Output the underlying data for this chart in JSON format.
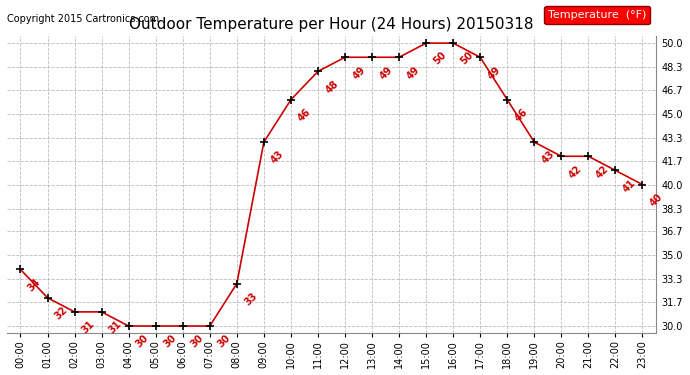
{
  "title": "Outdoor Temperature per Hour (24 Hours) 20150318",
  "copyright": "Copyright 2015 Cartronics.com",
  "legend_label": "Temperature  (°F)",
  "hours": [
    "00:00",
    "01:00",
    "02:00",
    "03:00",
    "04:00",
    "05:00",
    "06:00",
    "07:00",
    "08:00",
    "09:00",
    "10:00",
    "11:00",
    "12:00",
    "13:00",
    "14:00",
    "15:00",
    "16:00",
    "17:00",
    "18:00",
    "19:00",
    "20:00",
    "21:00",
    "22:00",
    "23:00"
  ],
  "temperatures": [
    34,
    32,
    31,
    31,
    30,
    30,
    30,
    30,
    33,
    43,
    46,
    48,
    49,
    49,
    49,
    50,
    50,
    49,
    46,
    43,
    42,
    42,
    41,
    40
  ],
  "ylim": [
    29.5,
    50.5
  ],
  "yticks": [
    30.0,
    31.7,
    33.3,
    35.0,
    36.7,
    38.3,
    40.0,
    41.7,
    43.3,
    45.0,
    46.7,
    48.3,
    50.0
  ],
  "line_color": "#cc0000",
  "marker_color": "black",
  "background_color": "white",
  "grid_color": "#bbbbbb",
  "title_fontsize": 11,
  "tick_fontsize": 7,
  "annotation_fontsize": 7,
  "legend_bg": "red",
  "legend_fg": "white",
  "copyright_fontsize": 7
}
